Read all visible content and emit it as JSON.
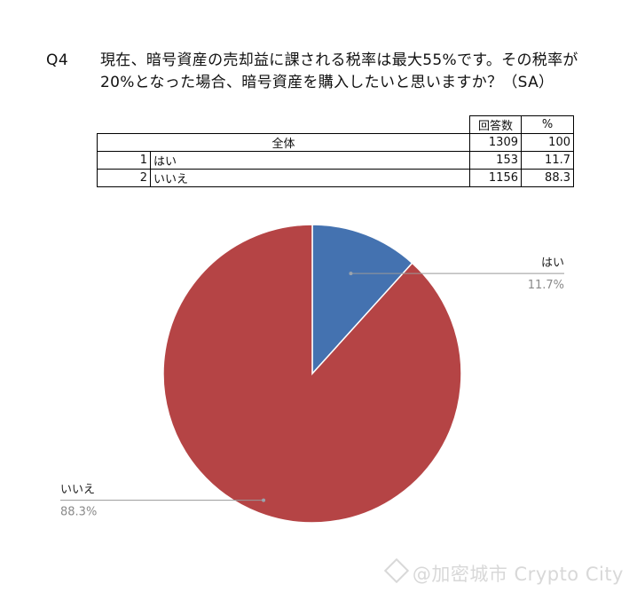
{
  "question": {
    "label": "Q4",
    "text": "現在、暗号資産の売却益に課される税率は最大55%です。その税率が20%となった場合、暗号資産を購入したいと思いますか？（SA）"
  },
  "table": {
    "headers": {
      "count": "回答数",
      "pct": "%"
    },
    "total": {
      "label": "全体",
      "count": "1309",
      "pct": "100"
    },
    "rows": [
      {
        "no": "1",
        "label": "はい",
        "count": "153",
        "pct": "11.7"
      },
      {
        "no": "2",
        "label": "いいえ",
        "count": "1156",
        "pct": "88.3"
      }
    ]
  },
  "chart_data": {
    "type": "pie",
    "categories": [
      "はい",
      "いいえ"
    ],
    "values": [
      11.7,
      88.3
    ],
    "value_labels": [
      "11.7%",
      "88.3%"
    ],
    "colors": [
      "#4472b0",
      "#b54445"
    ],
    "start": "12 o'clock, clockwise"
  },
  "watermark": {
    "text": "@加密城市 Crypto City"
  }
}
